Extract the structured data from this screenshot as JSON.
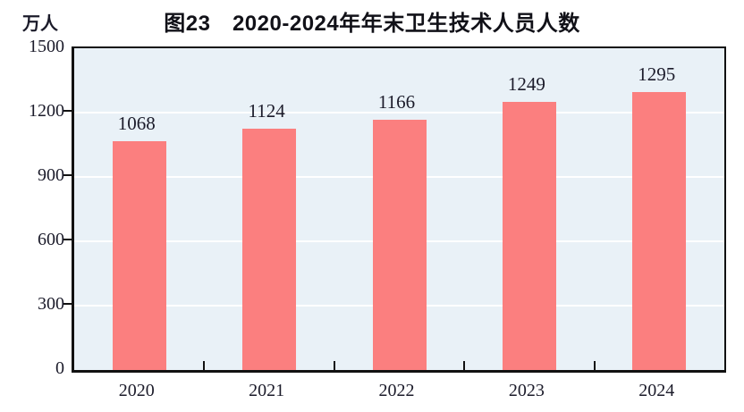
{
  "chart_data": {
    "type": "bar",
    "title": "图23　2020-2024年年末卫生技术人员人数",
    "unit_label": "万人",
    "categories": [
      "2020",
      "2021",
      "2022",
      "2023",
      "2024"
    ],
    "values": [
      1068,
      1124,
      1166,
      1249,
      1295
    ],
    "ylim": [
      0,
      1500
    ],
    "yticks": [
      0,
      300,
      600,
      900,
      1200,
      1500
    ],
    "grid": true,
    "legend_position": "none",
    "colors": {
      "bar": "#FB7F7F",
      "plot_background": "#E9F1F7",
      "gridline": "#FFFFFF",
      "axis": "#111111",
      "text": "#1B1B2A"
    }
  }
}
